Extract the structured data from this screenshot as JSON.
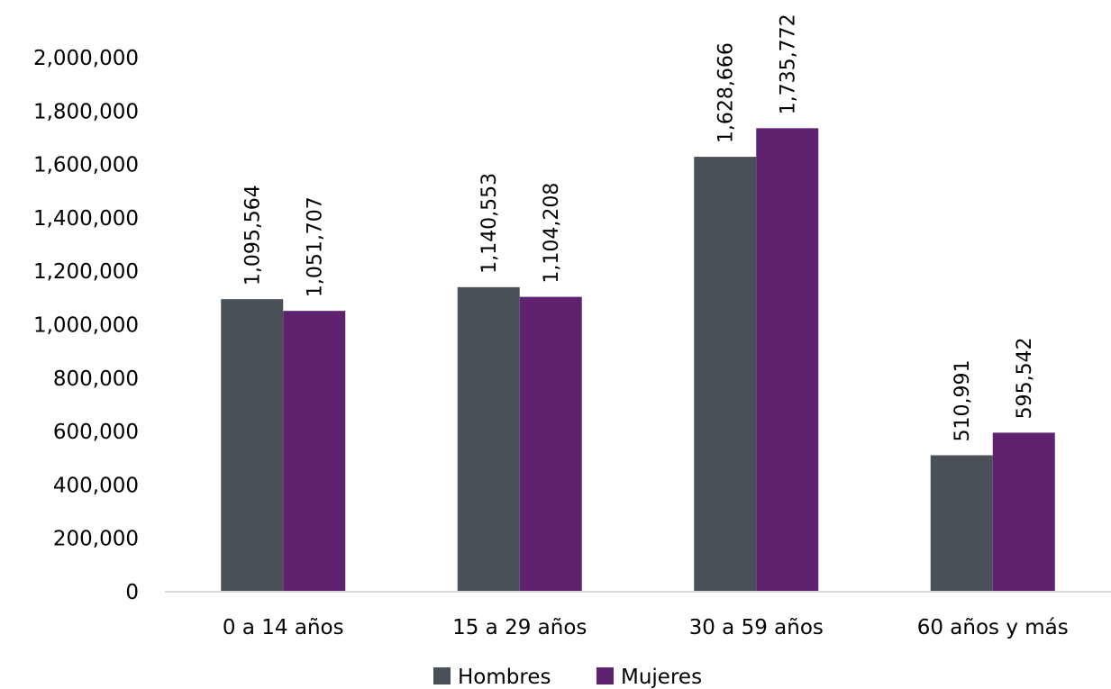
{
  "chart_data": {
    "type": "bar",
    "title": "",
    "xlabel": "",
    "ylabel": "",
    "categories": [
      "0 a 14 años",
      "15 a 29 años",
      "30 a 59 años",
      "60 años y más"
    ],
    "series": [
      {
        "name": "Hombres",
        "color": "#4a5057",
        "values": [
          1095564,
          1140553,
          1628666,
          510991
        ],
        "labels": [
          "1,095,564",
          "1,140,553",
          "1,628,666",
          "510,991"
        ]
      },
      {
        "name": "Mujeres",
        "color": "#5f226e",
        "values": [
          1051707,
          1104208,
          1735772,
          595542
        ],
        "labels": [
          "1,051,707",
          "1,104,208",
          "1,735,772",
          "595,542"
        ]
      }
    ],
    "ylim": [
      0,
      2000000
    ],
    "yticks": [
      0,
      200000,
      400000,
      600000,
      800000,
      1000000,
      1200000,
      1400000,
      1600000,
      1800000,
      2000000
    ],
    "ytick_labels": [
      "0",
      "200,000",
      "400,000",
      "600,000",
      "800,000",
      "1,000,000",
      "1,200,000",
      "1,400,000",
      "1,600,000",
      "1,800,000",
      "2,000,000"
    ],
    "grid": false,
    "legend_position": "bottom",
    "axis_color": "#d9d9d9"
  }
}
